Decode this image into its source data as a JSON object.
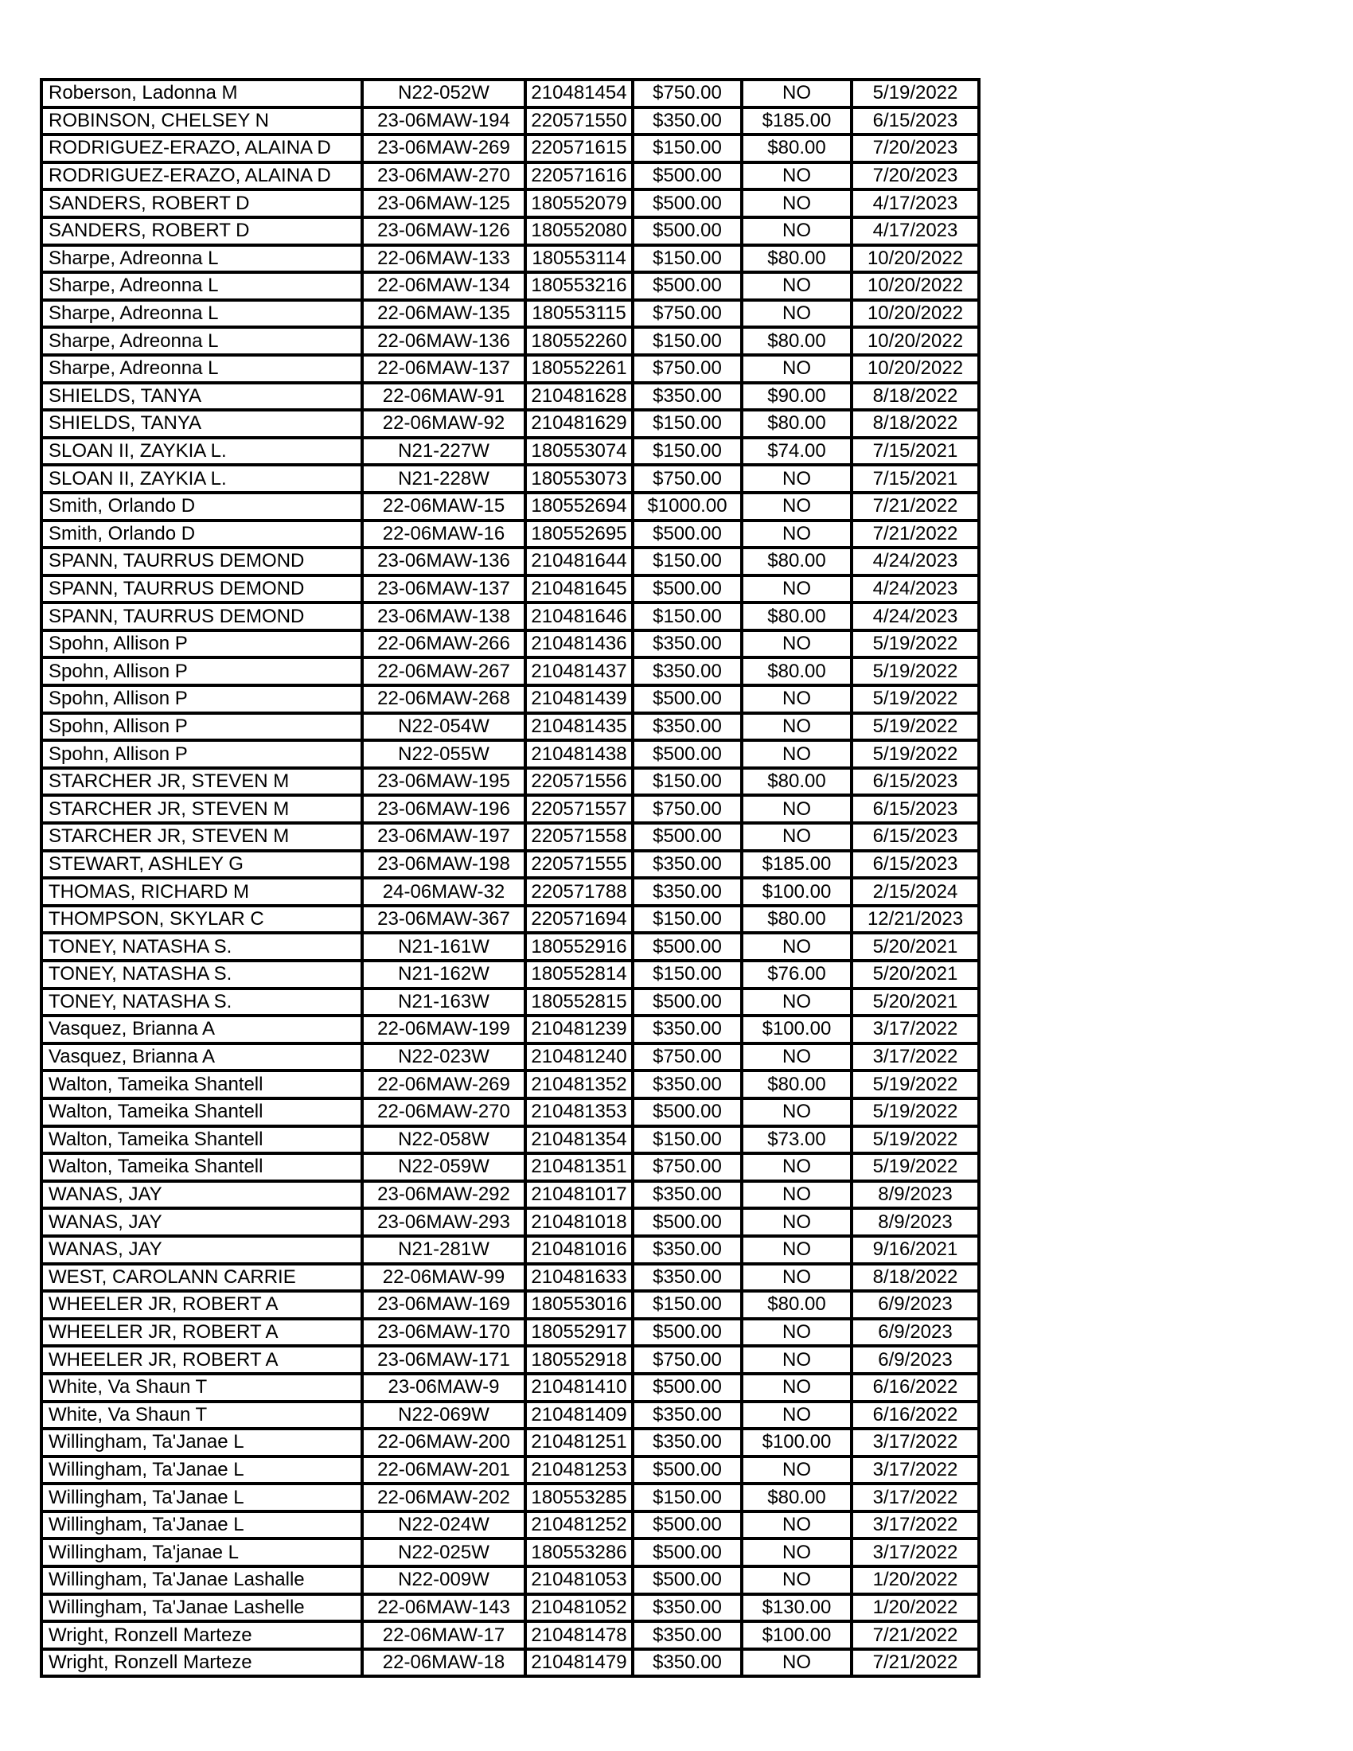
{
  "table": {
    "rows": [
      [
        "Roberson, Ladonna M",
        "N22-052W",
        "210481454",
        "$750.00",
        "NO",
        "5/19/2022"
      ],
      [
        "ROBINSON, CHELSEY N",
        "23-06MAW-194",
        "220571550",
        "$350.00",
        "$185.00",
        "6/15/2023"
      ],
      [
        "RODRIGUEZ-ERAZO, ALAINA D",
        "23-06MAW-269",
        "220571615",
        "$150.00",
        "$80.00",
        "7/20/2023"
      ],
      [
        "RODRIGUEZ-ERAZO, ALAINA D",
        "23-06MAW-270",
        "220571616",
        "$500.00",
        "NO",
        "7/20/2023"
      ],
      [
        "SANDERS, ROBERT D",
        "23-06MAW-125",
        "180552079",
        "$500.00",
        "NO",
        "4/17/2023"
      ],
      [
        "SANDERS, ROBERT D",
        "23-06MAW-126",
        "180552080",
        "$500.00",
        "NO",
        "4/17/2023"
      ],
      [
        "Sharpe, Adreonna L",
        "22-06MAW-133",
        "180553114",
        "$150.00",
        "$80.00",
        "10/20/2022"
      ],
      [
        "Sharpe, Adreonna L",
        "22-06MAW-134",
        "180553216",
        "$500.00",
        "NO",
        "10/20/2022"
      ],
      [
        "Sharpe, Adreonna L",
        "22-06MAW-135",
        "180553115",
        "$750.00",
        "NO",
        "10/20/2022"
      ],
      [
        "Sharpe, Adreonna L",
        "22-06MAW-136",
        "180552260",
        "$150.00",
        "$80.00",
        "10/20/2022"
      ],
      [
        "Sharpe, Adreonna L",
        "22-06MAW-137",
        "180552261",
        "$750.00",
        "NO",
        "10/20/2022"
      ],
      [
        "SHIELDS, TANYA",
        "22-06MAW-91",
        "210481628",
        "$350.00",
        "$90.00",
        "8/18/2022"
      ],
      [
        "SHIELDS, TANYA",
        "22-06MAW-92",
        "210481629",
        "$150.00",
        "$80.00",
        "8/18/2022"
      ],
      [
        "SLOAN II, ZAYKIA L.",
        "N21-227W",
        "180553074",
        "$150.00",
        "$74.00",
        "7/15/2021"
      ],
      [
        "SLOAN II, ZAYKIA L.",
        "N21-228W",
        "180553073",
        "$750.00",
        "NO",
        "7/15/2021"
      ],
      [
        "Smith, Orlando D",
        "22-06MAW-15",
        "180552694",
        "$1000.00",
        "NO",
        "7/21/2022"
      ],
      [
        "Smith, Orlando D",
        "22-06MAW-16",
        "180552695",
        "$500.00",
        "NO",
        "7/21/2022"
      ],
      [
        "SPANN, TAURRUS DEMOND",
        "23-06MAW-136",
        "210481644",
        "$150.00",
        "$80.00",
        "4/24/2023"
      ],
      [
        "SPANN, TAURRUS DEMOND",
        "23-06MAW-137",
        "210481645",
        "$500.00",
        "NO",
        "4/24/2023"
      ],
      [
        "SPANN, TAURRUS DEMOND",
        "23-06MAW-138",
        "210481646",
        "$150.00",
        "$80.00",
        "4/24/2023"
      ],
      [
        "Spohn, Allison P",
        "22-06MAW-266",
        "210481436",
        "$350.00",
        "NO",
        "5/19/2022"
      ],
      [
        "Spohn, Allison P",
        "22-06MAW-267",
        "210481437",
        "$350.00",
        "$80.00",
        "5/19/2022"
      ],
      [
        "Spohn, Allison P",
        "22-06MAW-268",
        "210481439",
        "$500.00",
        "NO",
        "5/19/2022"
      ],
      [
        "Spohn, Allison P",
        "N22-054W",
        "210481435",
        "$350.00",
        "NO",
        "5/19/2022"
      ],
      [
        "Spohn, Allison P",
        "N22-055W",
        "210481438",
        "$500.00",
        "NO",
        "5/19/2022"
      ],
      [
        "STARCHER JR, STEVEN M",
        "23-06MAW-195",
        "220571556",
        "$150.00",
        "$80.00",
        "6/15/2023"
      ],
      [
        "STARCHER JR, STEVEN M",
        "23-06MAW-196",
        "220571557",
        "$750.00",
        "NO",
        "6/15/2023"
      ],
      [
        "STARCHER JR, STEVEN M",
        "23-06MAW-197",
        "220571558",
        "$500.00",
        "NO",
        "6/15/2023"
      ],
      [
        "STEWART, ASHLEY G",
        "23-06MAW-198",
        "220571555",
        "$350.00",
        "$185.00",
        "6/15/2023"
      ],
      [
        "THOMAS, RICHARD M",
        "24-06MAW-32",
        "220571788",
        "$350.00",
        "$100.00",
        "2/15/2024"
      ],
      [
        "THOMPSON, SKYLAR C",
        "23-06MAW-367",
        "220571694",
        "$150.00",
        "$80.00",
        "12/21/2023"
      ],
      [
        "TONEY, NATASHA S.",
        "N21-161W",
        "180552916",
        "$500.00",
        "NO",
        "5/20/2021"
      ],
      [
        "TONEY, NATASHA S.",
        "N21-162W",
        "180552814",
        "$150.00",
        "$76.00",
        "5/20/2021"
      ],
      [
        "TONEY, NATASHA S.",
        "N21-163W",
        "180552815",
        "$500.00",
        "NO",
        "5/20/2021"
      ],
      [
        "Vasquez, Brianna A",
        "22-06MAW-199",
        "210481239",
        "$350.00",
        "$100.00",
        "3/17/2022"
      ],
      [
        "Vasquez, Brianna A",
        "N22-023W",
        "210481240",
        "$750.00",
        "NO",
        "3/17/2022"
      ],
      [
        "Walton, Tameika Shantell",
        "22-06MAW-269",
        "210481352",
        "$350.00",
        "$80.00",
        "5/19/2022"
      ],
      [
        "Walton, Tameika Shantell",
        "22-06MAW-270",
        "210481353",
        "$500.00",
        "NO",
        "5/19/2022"
      ],
      [
        "Walton, Tameika Shantell",
        "N22-058W",
        "210481354",
        "$150.00",
        "$73.00",
        "5/19/2022"
      ],
      [
        "Walton, Tameika Shantell",
        "N22-059W",
        "210481351",
        "$750.00",
        "NO",
        "5/19/2022"
      ],
      [
        "WANAS, JAY",
        "23-06MAW-292",
        "210481017",
        "$350.00",
        "NO",
        "8/9/2023"
      ],
      [
        "WANAS, JAY",
        "23-06MAW-293",
        "210481018",
        "$500.00",
        "NO",
        "8/9/2023"
      ],
      [
        "WANAS, JAY",
        "N21-281W",
        "210481016",
        "$350.00",
        "NO",
        "9/16/2021"
      ],
      [
        "WEST, CAROLANN CARRIE",
        "22-06MAW-99",
        "210481633",
        "$350.00",
        "NO",
        "8/18/2022"
      ],
      [
        "WHEELER JR, ROBERT A",
        "23-06MAW-169",
        "180553016",
        "$150.00",
        "$80.00",
        "6/9/2023"
      ],
      [
        "WHEELER JR, ROBERT A",
        "23-06MAW-170",
        "180552917",
        "$500.00",
        "NO",
        "6/9/2023"
      ],
      [
        "WHEELER JR, ROBERT A",
        "23-06MAW-171",
        "180552918",
        "$750.00",
        "NO",
        "6/9/2023"
      ],
      [
        "White, Va Shaun T",
        "23-06MAW-9",
        "210481410",
        "$500.00",
        "NO",
        "6/16/2022"
      ],
      [
        "White, Va Shaun T",
        "N22-069W",
        "210481409",
        "$350.00",
        "NO",
        "6/16/2022"
      ],
      [
        "Willingham, Ta'Janae L",
        "22-06MAW-200",
        "210481251",
        "$350.00",
        "$100.00",
        "3/17/2022"
      ],
      [
        "Willingham, Ta'Janae L",
        "22-06MAW-201",
        "210481253",
        "$500.00",
        "NO",
        "3/17/2022"
      ],
      [
        "Willingham, Ta'Janae L",
        "22-06MAW-202",
        "180553285",
        "$150.00",
        "$80.00",
        "3/17/2022"
      ],
      [
        "Willingham, Ta'Janae L",
        "N22-024W",
        "210481252",
        "$500.00",
        "NO",
        "3/17/2022"
      ],
      [
        "Willingham, Ta'janae L",
        "N22-025W",
        "180553286",
        "$500.00",
        "NO",
        "3/17/2022"
      ],
      [
        "Willingham, Ta'Janae Lashalle",
        "N22-009W",
        "210481053",
        "$500.00",
        "NO",
        "1/20/2022"
      ],
      [
        "Willingham, Ta'Janae Lashelle",
        "22-06MAW-143",
        "210481052",
        "$350.00",
        "$130.00",
        "1/20/2022"
      ],
      [
        "Wright, Ronzell Marteze",
        "22-06MAW-17",
        "210481478",
        "$350.00",
        "$100.00",
        "7/21/2022"
      ],
      [
        "Wright, Ronzell Marteze",
        "22-06MAW-18",
        "210481479",
        "$350.00",
        "NO",
        "7/21/2022"
      ]
    ]
  }
}
